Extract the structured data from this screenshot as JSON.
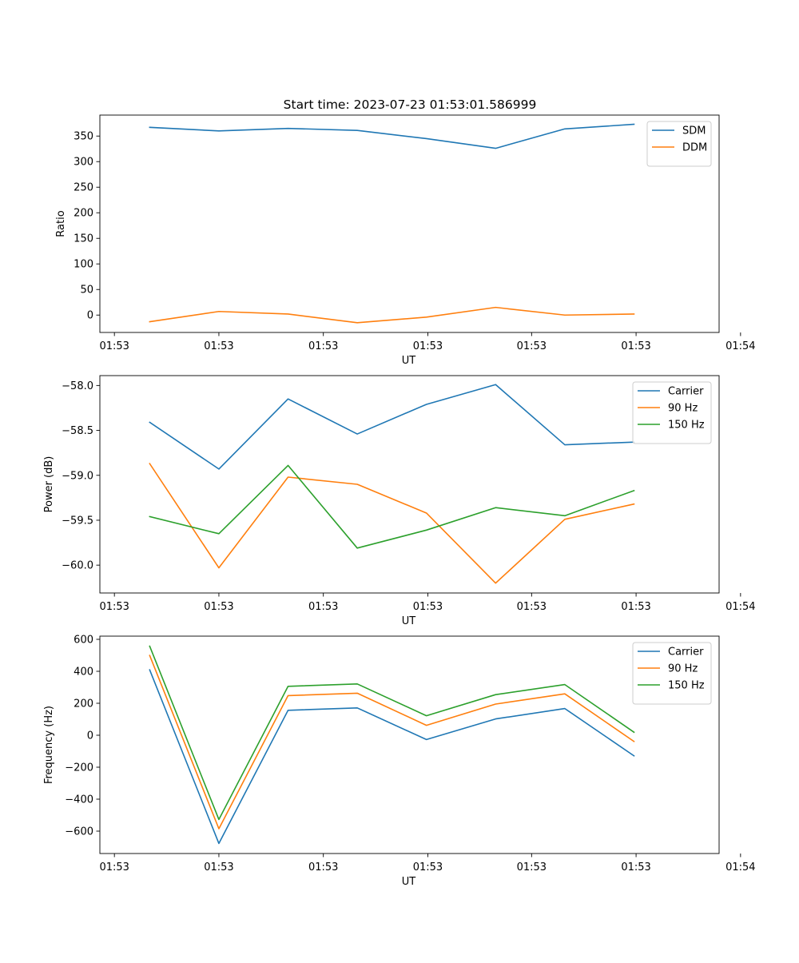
{
  "figure": {
    "title": "Start time: 2023-07-23 01:53:01.586999"
  },
  "chart_data": [
    {
      "type": "line",
      "title": "Start time: 2023-07-23 01:53:01.586999",
      "xlabel": "UT",
      "ylabel": "Ratio",
      "x": [
        1,
        2,
        3,
        4,
        5,
        6,
        7,
        8
      ],
      "xlim": [
        0.28,
        9.23
      ],
      "xticks": [
        0.49,
        2.0,
        3.51,
        5.02,
        6.52,
        8.03,
        9.54
      ],
      "xtick_labels": [
        "01:53",
        "01:53",
        "01:53",
        "01:53",
        "01:53",
        "01:53",
        "01:54"
      ],
      "ylim": [
        -34,
        391
      ],
      "yticks": [
        0,
        50,
        100,
        150,
        200,
        250,
        300,
        350
      ],
      "ytick_labels": [
        "0",
        "50",
        "100",
        "150",
        "200",
        "250",
        "300",
        "350"
      ],
      "legend_position": "top-right",
      "grid": false,
      "series": [
        {
          "name": "SDM",
          "color": "#1f77b4",
          "values": [
            367,
            360,
            365,
            361,
            345,
            326,
            364,
            373
          ]
        },
        {
          "name": "DDM",
          "color": "#ff7f0e",
          "values": [
            -13,
            7,
            2,
            -15,
            -4,
            15,
            0,
            2
          ]
        }
      ]
    },
    {
      "type": "line",
      "title": "",
      "xlabel": "UT",
      "ylabel": "Power (dB)",
      "x": [
        1,
        2,
        3,
        4,
        5,
        6,
        7,
        8
      ],
      "xlim": [
        0.28,
        9.23
      ],
      "xticks": [
        0.49,
        2.0,
        3.51,
        5.02,
        6.52,
        8.03,
        9.54
      ],
      "xtick_labels": [
        "01:53",
        "01:53",
        "01:53",
        "01:53",
        "01:53",
        "01:53",
        "01:54"
      ],
      "ylim": [
        -60.31,
        -57.89
      ],
      "yticks": [
        -60.0,
        -59.5,
        -59.0,
        -58.5,
        -58.0
      ],
      "ytick_labels": [
        "−60.0",
        "−59.5",
        "−59.0",
        "−58.5",
        "−58.0"
      ],
      "legend_position": "top-right",
      "grid": false,
      "series": [
        {
          "name": "Carrier",
          "color": "#1f77b4",
          "values": [
            -58.41,
            -58.93,
            -58.15,
            -58.54,
            -58.21,
            -57.99,
            -58.66,
            -58.63
          ]
        },
        {
          "name": "90 Hz",
          "color": "#ff7f0e",
          "values": [
            -58.87,
            -60.03,
            -59.02,
            -59.1,
            -59.42,
            -60.2,
            -59.49,
            -59.32
          ]
        },
        {
          "name": "150 Hz",
          "color": "#2ca02c",
          "values": [
            -59.46,
            -59.65,
            -58.89,
            -59.81,
            -59.61,
            -59.36,
            -59.45,
            -59.17
          ]
        }
      ]
    },
    {
      "type": "line",
      "title": "",
      "xlabel": "UT",
      "ylabel": "Frequency (Hz)",
      "x": [
        1,
        2,
        3,
        4,
        5,
        6,
        7,
        8
      ],
      "xlim": [
        0.28,
        9.23
      ],
      "xticks": [
        0.49,
        2.0,
        3.51,
        5.02,
        6.52,
        8.03,
        9.54
      ],
      "xtick_labels": [
        "01:53",
        "01:53",
        "01:53",
        "01:53",
        "01:53",
        "01:53",
        "01:54"
      ],
      "ylim": [
        -740,
        620
      ],
      "yticks": [
        -600,
        -400,
        -200,
        0,
        200,
        400,
        600
      ],
      "ytick_labels": [
        "−600",
        "−400",
        "−200",
        "0",
        "200",
        "400",
        "600"
      ],
      "legend_position": "top-right",
      "grid": false,
      "series": [
        {
          "name": "Carrier",
          "color": "#1f77b4",
          "values": [
            409,
            -677,
            156,
            171,
            -27,
            102,
            167,
            -129
          ]
        },
        {
          "name": "90 Hz",
          "color": "#ff7f0e",
          "values": [
            499,
            -585,
            248,
            263,
            62,
            195,
            259,
            -39
          ]
        },
        {
          "name": "150 Hz",
          "color": "#2ca02c",
          "values": [
            557,
            -527,
            306,
            321,
            122,
            254,
            317,
            19
          ]
        }
      ]
    }
  ]
}
